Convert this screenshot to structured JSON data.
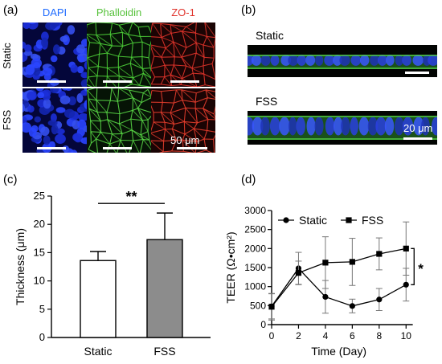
{
  "panel_a": {
    "label": "(a)",
    "channels": [
      {
        "name": "DAPI",
        "color": "#1e6bff"
      },
      {
        "name": "Phalloidin",
        "color": "#57c23c"
      },
      {
        "name": "ZO-1",
        "color": "#e0322b"
      }
    ],
    "rows": [
      "Static",
      "FSS"
    ],
    "scale_text": "50 μm"
  },
  "panel_b": {
    "label": "(b)",
    "rows": [
      "Static",
      "FSS"
    ],
    "scale_text": "20 μm"
  },
  "chart_data": [
    {
      "type": "bar",
      "panel_label": "(c)",
      "categories": [
        "Static",
        "FSS"
      ],
      "values": [
        13.6,
        17.3
      ],
      "error": [
        1.6,
        4.7
      ],
      "colors": [
        "#ffffff",
        "#8c8c8c"
      ],
      "ylabel": "Thickness (μm)",
      "ylim": [
        0,
        25
      ],
      "yticks": [
        "0",
        "5",
        "10",
        "15",
        "20",
        "25"
      ],
      "significance": "**"
    },
    {
      "type": "line",
      "panel_label": "(d)",
      "x": [
        0,
        2,
        4,
        6,
        8,
        10
      ],
      "xticks": [
        "0",
        "2",
        "4",
        "6",
        "8",
        "10"
      ],
      "xlabel": "Time (Day)",
      "ylabel": "TEER (Ω•cm²)",
      "ylim": [
        0,
        3000
      ],
      "yticks": [
        "0",
        "500",
        "1000",
        "1500",
        "2000",
        "2500",
        "3000"
      ],
      "series": [
        {
          "name": "Static",
          "marker": "circle",
          "values": [
            480,
            1480,
            730,
            490,
            660,
            1050
          ],
          "error": [
            330,
            420,
            430,
            180,
            290,
            430
          ]
        },
        {
          "name": "FSS",
          "marker": "square",
          "values": [
            470,
            1360,
            1630,
            1650,
            1860,
            2000
          ],
          "error": [
            350,
            310,
            680,
            620,
            420,
            700
          ]
        }
      ],
      "legend_position": "top",
      "significance": "*"
    }
  ]
}
